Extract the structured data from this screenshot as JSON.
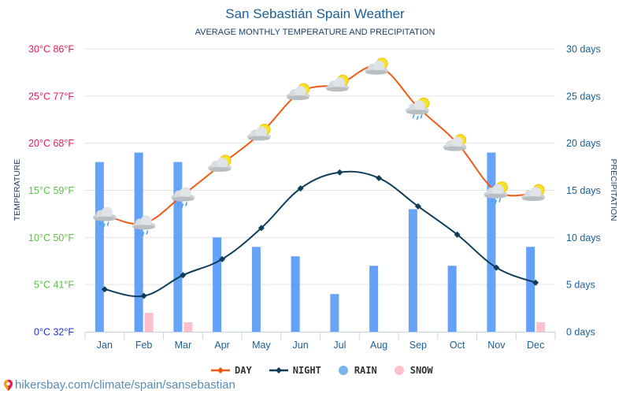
{
  "title": "San Sebastián Spain Weather",
  "subtitle": "AVERAGE MONTHLY TEMPERATURE AND PRECIPITATION",
  "footer": {
    "url_text": "hikersbay.com/climate/spain/sansebastian",
    "icon": "location-pin-icon"
  },
  "chart_data": {
    "type": "bar+line",
    "title": "San Sebastián Spain Weather",
    "subtitle": "AVERAGE MONTHLY TEMPERATURE AND PRECIPITATION",
    "categories": [
      "Jan",
      "Feb",
      "Mar",
      "Apr",
      "May",
      "Jun",
      "Jul",
      "Aug",
      "Sep",
      "Oct",
      "Nov",
      "Dec"
    ],
    "y_left": {
      "label": "TEMPERATURE",
      "range": [
        0,
        30
      ],
      "ticks": [
        {
          "value": 0,
          "label": "0°C 32°F",
          "color": "#2233cc"
        },
        {
          "value": 5,
          "label": "5°C 41°F",
          "color": "#5cbf4a"
        },
        {
          "value": 10,
          "label": "10°C 50°F",
          "color": "#5cbf4a"
        },
        {
          "value": 15,
          "label": "15°C 59°F",
          "color": "#5cbf4a"
        },
        {
          "value": 20,
          "label": "20°C 68°F",
          "color": "#e8195a"
        },
        {
          "value": 25,
          "label": "25°C 77°F",
          "color": "#e8195a"
        },
        {
          "value": 30,
          "label": "30°C 86°F",
          "color": "#e8195a"
        }
      ]
    },
    "y_right": {
      "label": "PRECIPITATION",
      "range": [
        0,
        30
      ],
      "ticks": [
        {
          "value": 0,
          "label": "0 days"
        },
        {
          "value": 5,
          "label": "5 days"
        },
        {
          "value": 10,
          "label": "10 days"
        },
        {
          "value": 15,
          "label": "15 days"
        },
        {
          "value": 20,
          "label": "20 days"
        },
        {
          "value": 25,
          "label": "25 days"
        },
        {
          "value": 30,
          "label": "30 days"
        }
      ]
    },
    "grid": true,
    "legend_position": "bottom",
    "series": [
      {
        "name": "DAY",
        "type": "line",
        "axis": "left",
        "color": "#f05a14",
        "values": [
          12.4,
          11.5,
          14.5,
          17.8,
          21.1,
          25.4,
          26.3,
          28.1,
          23.8,
          20.0,
          14.9,
          14.7
        ],
        "weather_icons": [
          "rain",
          "rain",
          "rain",
          "partly-sunny",
          "partly-sunny",
          "partly-sunny",
          "partly-sunny",
          "partly-sunny",
          "sun-rain",
          "partly-sunny",
          "sun-rain",
          "partly-sunny"
        ]
      },
      {
        "name": "NIGHT",
        "type": "line",
        "axis": "left",
        "color": "#0e3d5a",
        "values": [
          4.5,
          3.8,
          6.0,
          7.7,
          11.0,
          15.2,
          16.9,
          16.3,
          13.3,
          10.3,
          6.8,
          5.2
        ]
      },
      {
        "name": "RAIN",
        "type": "bar",
        "axis": "right",
        "color": "#5b9bf8",
        "values": [
          18,
          19,
          18,
          10,
          9,
          8,
          4,
          7,
          13,
          7,
          19,
          9
        ]
      },
      {
        "name": "SNOW",
        "type": "bar",
        "axis": "right",
        "color": "#ffc0cb",
        "values": [
          0,
          2,
          1,
          0,
          0,
          0,
          0,
          0,
          0,
          0,
          0,
          1
        ]
      }
    ]
  },
  "legend": [
    {
      "label": "DAY",
      "color": "#f05a14",
      "marker": "line-diamond"
    },
    {
      "label": "NIGHT",
      "color": "#0e3d5a",
      "marker": "line-diamond"
    },
    {
      "label": "RAIN",
      "color": "#7ab4ee",
      "marker": "circle"
    },
    {
      "label": "SNOW",
      "color": "#ffc0cb",
      "marker": "circle"
    }
  ]
}
